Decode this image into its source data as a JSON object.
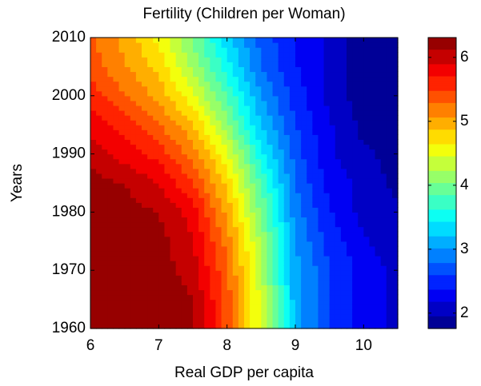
{
  "chart_data": {
    "type": "contour",
    "title": "Fertility (Children per Woman)",
    "xlabel": "Real GDP per capita",
    "ylabel": "Years",
    "x": [
      6,
      6.5,
      7,
      7.5,
      8,
      8.5,
      9,
      9.5,
      10,
      10.5
    ],
    "y": [
      1960,
      1965,
      1970,
      1975,
      1980,
      1985,
      1990,
      1995,
      2000,
      2005,
      2010
    ],
    "z": [
      [
        6.3,
        6.3,
        6.3,
        6.1,
        5.4,
        4.4,
        3.1,
        2.6,
        2.3,
        2.1
      ],
      [
        6.3,
        6.3,
        6.3,
        6.1,
        5.4,
        4.4,
        3.1,
        2.6,
        2.3,
        2.1
      ],
      [
        6.3,
        6.3,
        6.2,
        6.0,
        5.3,
        4.3,
        3.1,
        2.6,
        2.3,
        2.1
      ],
      [
        6.3,
        6.3,
        6.2,
        5.9,
        5.2,
        4.2,
        3.0,
        2.5,
        2.2,
        2.0
      ],
      [
        6.3,
        6.2,
        6.1,
        5.8,
        5.0,
        4.0,
        2.9,
        2.4,
        2.1,
        2.0
      ],
      [
        6.2,
        6.1,
        5.9,
        5.5,
        4.8,
        3.8,
        2.8,
        2.3,
        2.1,
        1.9
      ],
      [
        6.0,
        5.8,
        5.6,
        5.2,
        4.5,
        3.5,
        2.7,
        2.2,
        2.0,
        1.9
      ],
      [
        5.8,
        5.6,
        5.3,
        4.9,
        4.1,
        3.2,
        2.6,
        2.2,
        1.9,
        1.85
      ],
      [
        5.6,
        5.3,
        5.0,
        4.5,
        3.8,
        3.0,
        2.5,
        2.1,
        1.85,
        1.85
      ],
      [
        5.4,
        5.1,
        4.8,
        4.2,
        3.5,
        2.8,
        2.4,
        2.1,
        1.85,
        1.85
      ],
      [
        5.3,
        5.0,
        4.6,
        4.0,
        3.3,
        2.7,
        2.4,
        2.1,
        1.85,
        1.8
      ]
    ],
    "xlim": [
      6,
      10.5
    ],
    "xticks": [
      6,
      7,
      8,
      9,
      10
    ],
    "ylim": [
      1960,
      2010
    ],
    "yticks": [
      1960,
      1970,
      1980,
      1990,
      2000,
      2010
    ],
    "clim": [
      1.76,
      6.31
    ],
    "cticks": [
      2,
      3,
      4,
      5,
      6
    ],
    "colormap": "jet"
  }
}
